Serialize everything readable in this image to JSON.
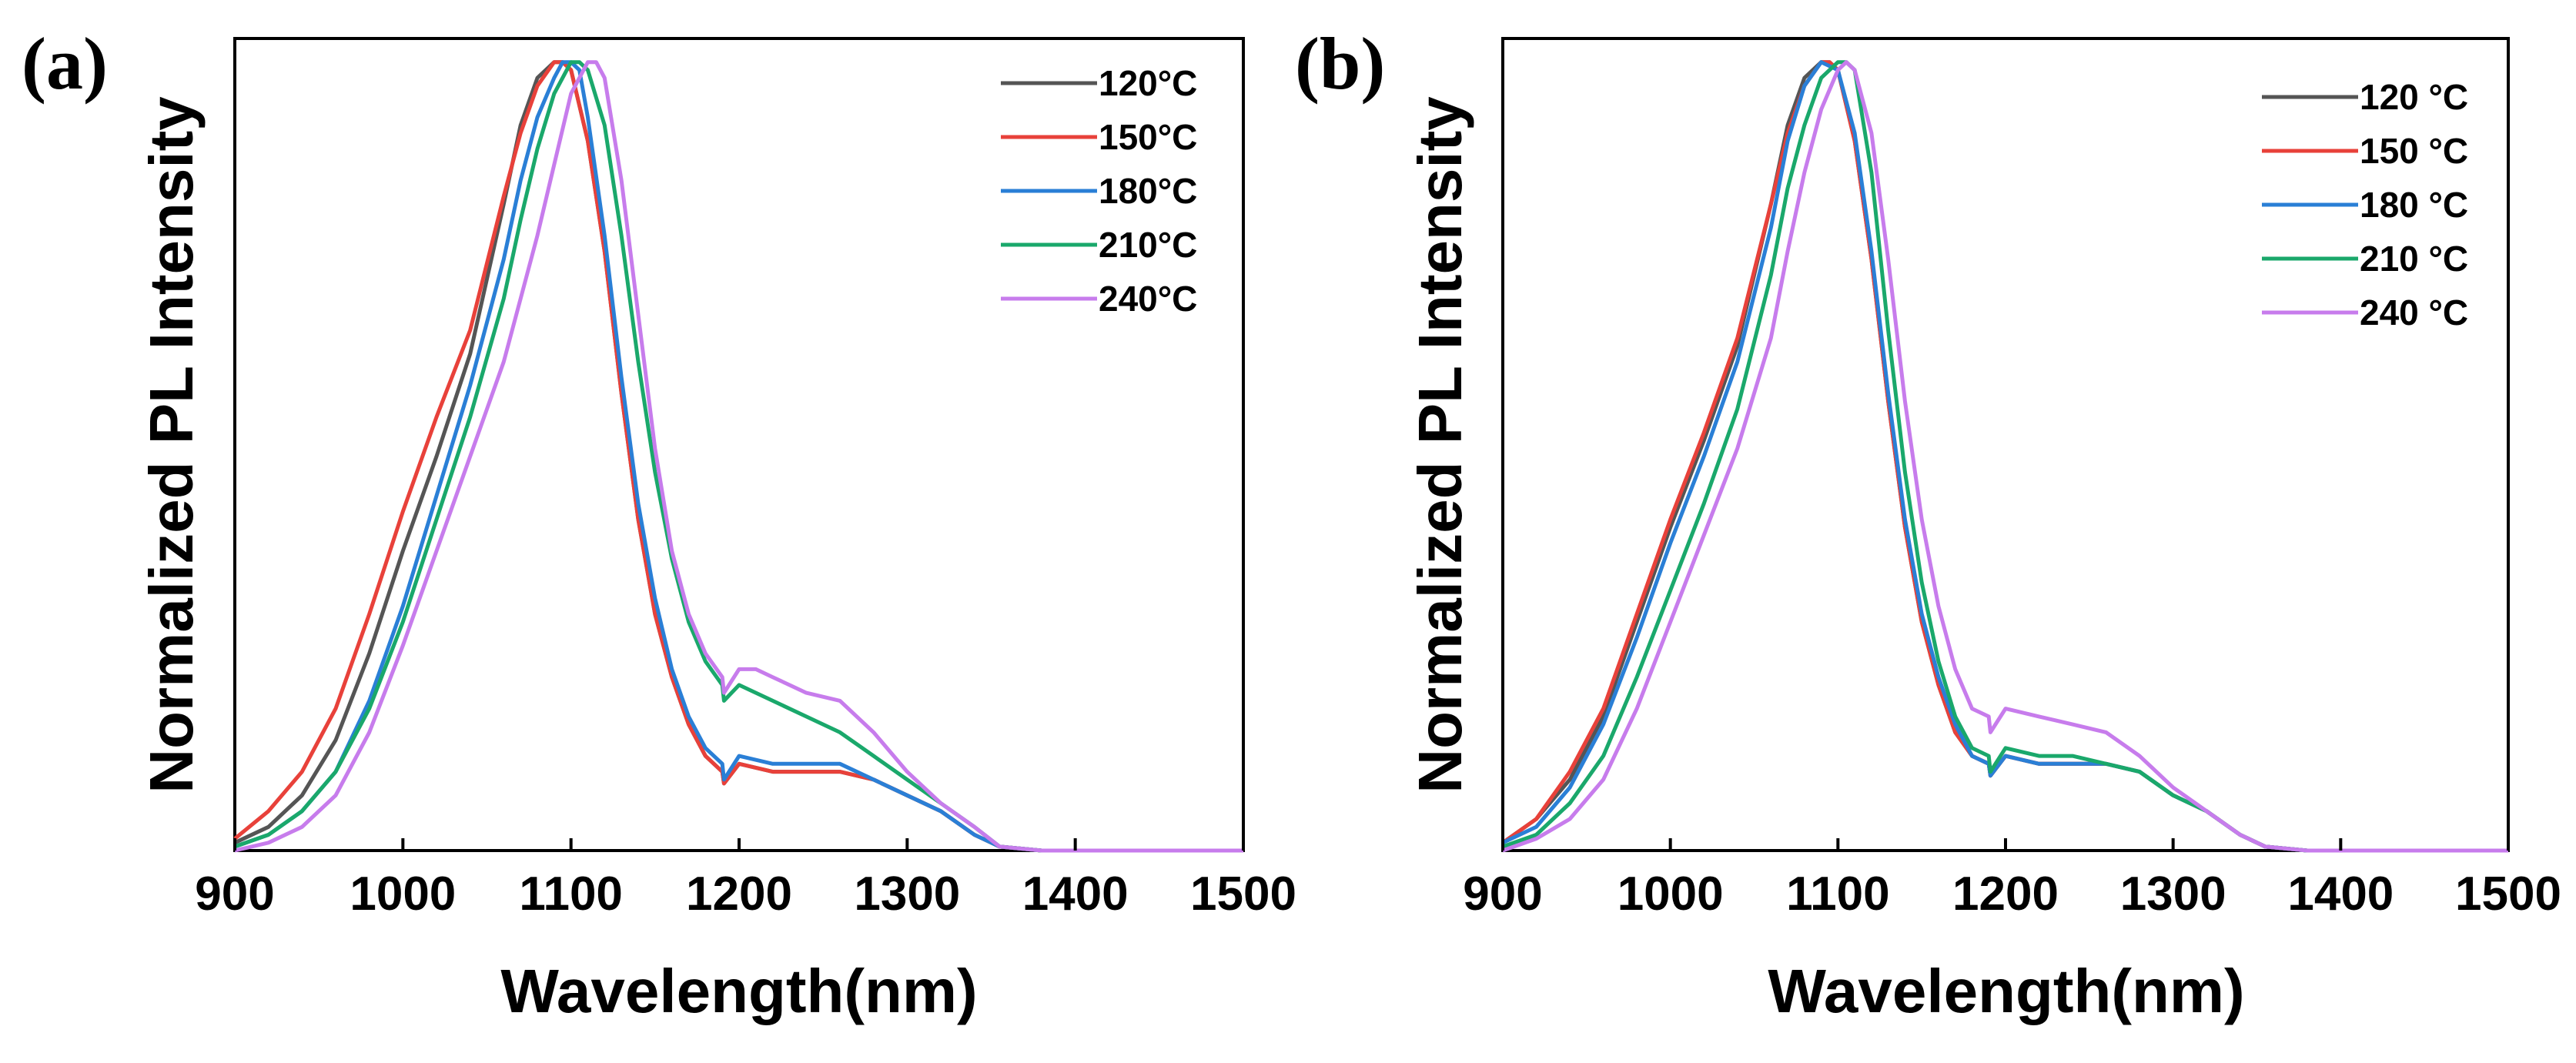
{
  "chart_data": [
    {
      "panel_label": "(a)",
      "type": "line",
      "xlabel": "Wavelength(nm)",
      "ylabel": "Normalized PL Intensity",
      "xlim": [
        900,
        1500
      ],
      "ylim": [
        0,
        1.03
      ],
      "xticks": [
        "900",
        "1000",
        "1100",
        "1200",
        "1300",
        "1400",
        "1500"
      ],
      "grid": false,
      "legend_position": "top-right",
      "series": [
        {
          "name": "120°C",
          "color": "#555555",
          "x": [
            900,
            920,
            940,
            960,
            980,
            1000,
            1020,
            1040,
            1060,
            1070,
            1080,
            1090,
            1095,
            1100,
            1110,
            1120,
            1130,
            1140,
            1150,
            1160,
            1170,
            1180,
            1190,
            1191,
            1200,
            1220,
            1240,
            1260,
            1280,
            1300,
            1320,
            1340,
            1355,
            1380,
            1420,
            1460,
            1500
          ],
          "y": [
            0.01,
            0.03,
            0.07,
            0.14,
            0.25,
            0.38,
            0.5,
            0.63,
            0.82,
            0.92,
            0.98,
            1.0,
            1.0,
            0.99,
            0.9,
            0.76,
            0.58,
            0.42,
            0.3,
            0.22,
            0.16,
            0.12,
            0.1,
            0.085,
            0.11,
            0.1,
            0.1,
            0.1,
            0.09,
            0.07,
            0.05,
            0.02,
            0.005,
            0.0,
            0.0,
            0.0,
            0.0
          ]
        },
        {
          "name": "150°C",
          "color": "#e8413a",
          "x": [
            900,
            920,
            940,
            960,
            980,
            1000,
            1020,
            1040,
            1060,
            1070,
            1080,
            1090,
            1095,
            1100,
            1110,
            1120,
            1130,
            1140,
            1150,
            1160,
            1170,
            1180,
            1190,
            1191,
            1200,
            1220,
            1240,
            1260,
            1280,
            1300,
            1320,
            1340,
            1355,
            1380,
            1420,
            1460,
            1500
          ],
          "y": [
            0.015,
            0.05,
            0.1,
            0.18,
            0.3,
            0.43,
            0.55,
            0.66,
            0.83,
            0.91,
            0.97,
            1.0,
            1.0,
            0.99,
            0.9,
            0.76,
            0.58,
            0.42,
            0.3,
            0.22,
            0.16,
            0.12,
            0.1,
            0.085,
            0.11,
            0.1,
            0.1,
            0.1,
            0.09,
            0.07,
            0.05,
            0.02,
            0.005,
            0.0,
            0.0,
            0.0,
            0.0
          ]
        },
        {
          "name": "180°C",
          "color": "#2a7fd6",
          "x": [
            900,
            920,
            940,
            960,
            980,
            1000,
            1020,
            1040,
            1060,
            1070,
            1080,
            1090,
            1095,
            1100,
            1105,
            1110,
            1120,
            1130,
            1140,
            1150,
            1160,
            1170,
            1180,
            1190,
            1191,
            1200,
            1220,
            1240,
            1260,
            1280,
            1300,
            1320,
            1340,
            1355,
            1380,
            1420,
            1460,
            1500
          ],
          "y": [
            0.005,
            0.02,
            0.05,
            0.1,
            0.19,
            0.31,
            0.45,
            0.59,
            0.75,
            0.85,
            0.93,
            0.98,
            1.0,
            1.0,
            0.99,
            0.93,
            0.78,
            0.6,
            0.44,
            0.32,
            0.23,
            0.17,
            0.13,
            0.11,
            0.09,
            0.12,
            0.11,
            0.11,
            0.11,
            0.09,
            0.07,
            0.05,
            0.02,
            0.005,
            0.0,
            0.0,
            0.0,
            0.0
          ]
        },
        {
          "name": "210°C",
          "color": "#1aa86b",
          "x": [
            900,
            920,
            940,
            960,
            980,
            1000,
            1020,
            1040,
            1060,
            1070,
            1080,
            1090,
            1100,
            1105,
            1110,
            1120,
            1130,
            1140,
            1150,
            1160,
            1170,
            1180,
            1190,
            1191,
            1200,
            1220,
            1240,
            1260,
            1280,
            1300,
            1320,
            1340,
            1355,
            1380,
            1420,
            1460,
            1500
          ],
          "y": [
            0.005,
            0.02,
            0.05,
            0.1,
            0.18,
            0.29,
            0.42,
            0.55,
            0.7,
            0.8,
            0.89,
            0.96,
            1.0,
            1.0,
            0.99,
            0.92,
            0.78,
            0.62,
            0.48,
            0.37,
            0.29,
            0.24,
            0.21,
            0.19,
            0.21,
            0.19,
            0.17,
            0.15,
            0.12,
            0.09,
            0.06,
            0.03,
            0.005,
            0.0,
            0.0,
            0.0,
            0.0
          ]
        },
        {
          "name": "240°C",
          "color": "#c77cec",
          "x": [
            900,
            920,
            940,
            960,
            980,
            1000,
            1020,
            1040,
            1060,
            1070,
            1080,
            1090,
            1100,
            1110,
            1115,
            1120,
            1130,
            1140,
            1150,
            1160,
            1170,
            1180,
            1190,
            1191,
            1200,
            1210,
            1220,
            1240,
            1260,
            1280,
            1300,
            1320,
            1340,
            1355,
            1380,
            1420,
            1460,
            1500
          ],
          "y": [
            0.0,
            0.01,
            0.03,
            0.07,
            0.15,
            0.26,
            0.38,
            0.5,
            0.62,
            0.7,
            0.78,
            0.87,
            0.96,
            1.0,
            1.0,
            0.98,
            0.85,
            0.68,
            0.51,
            0.38,
            0.3,
            0.25,
            0.22,
            0.2,
            0.23,
            0.23,
            0.22,
            0.2,
            0.19,
            0.15,
            0.1,
            0.06,
            0.03,
            0.005,
            0.0,
            0.0,
            0.0,
            0.0
          ]
        }
      ]
    },
    {
      "panel_label": "(b)",
      "type": "line",
      "xlabel": "Wavelength(nm)",
      "ylabel": "Normalized PL Intensity",
      "xlim": [
        900,
        1500
      ],
      "ylim": [
        0,
        1.03
      ],
      "xticks": [
        "900",
        "1000",
        "1100",
        "1200",
        "1300",
        "1400",
        "1500"
      ],
      "grid": false,
      "legend_position": "top-right",
      "series": [
        {
          "name": "120 °C",
          "color": "#555555",
          "x": [
            900,
            920,
            940,
            960,
            980,
            1000,
            1020,
            1040,
            1060,
            1070,
            1080,
            1090,
            1095,
            1100,
            1110,
            1120,
            1130,
            1140,
            1150,
            1160,
            1170,
            1180,
            1190,
            1191,
            1200,
            1220,
            1240,
            1260,
            1280,
            1300,
            1320,
            1340,
            1355,
            1380,
            1420,
            1460,
            1500
          ],
          "y": [
            0.01,
            0.04,
            0.09,
            0.17,
            0.29,
            0.41,
            0.52,
            0.64,
            0.82,
            0.92,
            0.98,
            1.0,
            1.0,
            0.99,
            0.9,
            0.75,
            0.57,
            0.41,
            0.29,
            0.21,
            0.15,
            0.12,
            0.11,
            0.095,
            0.12,
            0.11,
            0.11,
            0.11,
            0.1,
            0.07,
            0.05,
            0.02,
            0.005,
            0.0,
            0.0,
            0.0,
            0.0
          ]
        },
        {
          "name": "150 °C",
          "color": "#e8413a",
          "x": [
            900,
            920,
            940,
            960,
            980,
            1000,
            1020,
            1040,
            1060,
            1070,
            1080,
            1090,
            1095,
            1100,
            1110,
            1120,
            1130,
            1140,
            1150,
            1160,
            1170,
            1180,
            1190,
            1191,
            1200,
            1220,
            1240,
            1260,
            1280,
            1300,
            1320,
            1340,
            1355,
            1380,
            1420,
            1460,
            1500
          ],
          "y": [
            0.01,
            0.04,
            0.1,
            0.18,
            0.3,
            0.42,
            0.53,
            0.65,
            0.82,
            0.91,
            0.97,
            1.0,
            1.0,
            0.99,
            0.9,
            0.75,
            0.57,
            0.41,
            0.29,
            0.21,
            0.15,
            0.12,
            0.11,
            0.095,
            0.12,
            0.11,
            0.11,
            0.11,
            0.1,
            0.07,
            0.05,
            0.02,
            0.005,
            0.0,
            0.0,
            0.0,
            0.0
          ]
        },
        {
          "name": "180 °C",
          "color": "#2a7fd6",
          "x": [
            900,
            920,
            940,
            960,
            980,
            1000,
            1020,
            1040,
            1060,
            1070,
            1080,
            1090,
            1100,
            1110,
            1120,
            1130,
            1140,
            1150,
            1160,
            1170,
            1180,
            1190,
            1191,
            1200,
            1220,
            1240,
            1260,
            1280,
            1300,
            1320,
            1340,
            1355,
            1380,
            1420,
            1460,
            1500
          ],
          "y": [
            0.01,
            0.03,
            0.08,
            0.16,
            0.27,
            0.39,
            0.5,
            0.62,
            0.79,
            0.9,
            0.97,
            1.0,
            0.99,
            0.91,
            0.76,
            0.58,
            0.42,
            0.3,
            0.22,
            0.16,
            0.12,
            0.11,
            0.095,
            0.12,
            0.11,
            0.11,
            0.11,
            0.1,
            0.07,
            0.05,
            0.02,
            0.005,
            0.0,
            0.0,
            0.0,
            0.0
          ]
        },
        {
          "name": "210 °C",
          "color": "#1aa86b",
          "x": [
            900,
            920,
            940,
            960,
            980,
            1000,
            1020,
            1040,
            1060,
            1070,
            1080,
            1090,
            1100,
            1105,
            1110,
            1120,
            1130,
            1140,
            1150,
            1160,
            1170,
            1180,
            1190,
            1191,
            1200,
            1220,
            1240,
            1260,
            1280,
            1300,
            1320,
            1340,
            1355,
            1380,
            1420,
            1460,
            1500
          ],
          "y": [
            0.005,
            0.02,
            0.06,
            0.12,
            0.22,
            0.33,
            0.44,
            0.56,
            0.73,
            0.84,
            0.92,
            0.98,
            1.0,
            1.0,
            0.99,
            0.86,
            0.66,
            0.48,
            0.34,
            0.24,
            0.17,
            0.13,
            0.12,
            0.1,
            0.13,
            0.12,
            0.12,
            0.11,
            0.1,
            0.07,
            0.05,
            0.02,
            0.005,
            0.0,
            0.0,
            0.0,
            0.0
          ]
        },
        {
          "name": "240 °C",
          "color": "#c77cec",
          "x": [
            900,
            920,
            940,
            960,
            980,
            1000,
            1020,
            1040,
            1060,
            1070,
            1080,
            1090,
            1100,
            1105,
            1110,
            1120,
            1130,
            1140,
            1150,
            1160,
            1170,
            1180,
            1190,
            1191,
            1200,
            1220,
            1240,
            1260,
            1280,
            1300,
            1320,
            1340,
            1355,
            1380,
            1420,
            1460,
            1500
          ],
          "y": [
            0.0,
            0.015,
            0.04,
            0.09,
            0.18,
            0.29,
            0.4,
            0.51,
            0.65,
            0.76,
            0.86,
            0.94,
            0.99,
            1.0,
            0.99,
            0.91,
            0.75,
            0.57,
            0.42,
            0.31,
            0.23,
            0.18,
            0.17,
            0.15,
            0.18,
            0.17,
            0.16,
            0.15,
            0.12,
            0.08,
            0.05,
            0.02,
            0.005,
            0.0,
            0.0,
            0.0,
            0.0
          ]
        }
      ]
    }
  ]
}
